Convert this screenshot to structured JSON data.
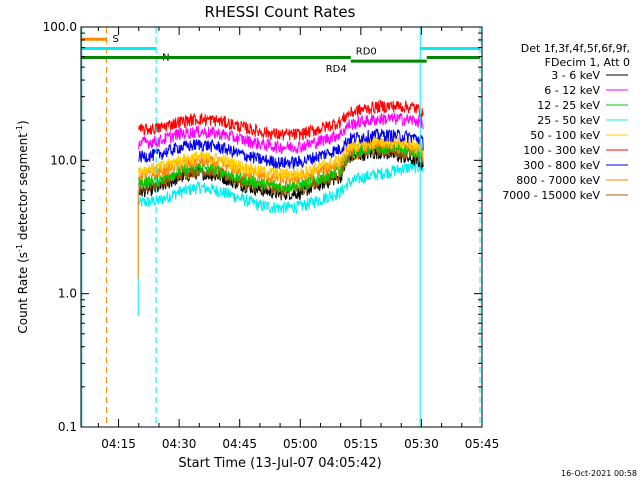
{
  "chart_data": {
    "type": "line",
    "title": "RHESSI Count Rates",
    "xlabel": "Start Time (13-Jul-07 04:05:42)",
    "ylabel": "Count Rate (s",
    "ylabel_sup1": "-1",
    "ylabel_mid": " detector segment",
    "ylabel_sup2": "-1",
    "ylabel_end": ")",
    "yscale": "log",
    "ylim": [
      0.1,
      100.0
    ],
    "xlim_min": [
      5.7,
      105.0
    ],
    "x_ticks": [
      {
        "min": 15,
        "label": "04:15"
      },
      {
        "min": 30,
        "label": "04:30"
      },
      {
        "min": 45,
        "label": "04:45"
      },
      {
        "min": 60,
        "label": "05:00"
      },
      {
        "min": 75,
        "label": "05:15"
      },
      {
        "min": 90,
        "label": "05:30"
      },
      {
        "min": 105,
        "label": "05:45"
      }
    ],
    "y_ticks": [
      {
        "v": 0.1,
        "label": "0.1"
      },
      {
        "v": 1.0,
        "label": "1.0"
      },
      {
        "v": 10.0,
        "label": "10.0"
      },
      {
        "v": 100.0,
        "label": "100.0"
      }
    ],
    "legend_header": [
      "Det 1f,3f,4f,5f,6f,9f,",
      "FDecim 1, Att 0"
    ],
    "legend_placement": "right",
    "grid": false,
    "x_unit": "minutes after 04:00",
    "data_start_min": 20,
    "data_end_min": 90.5,
    "series": [
      {
        "name": "3 - 6 keV",
        "color": "#000000",
        "x": [
          20,
          25,
          30,
          35,
          40,
          45,
          50,
          55,
          60,
          65,
          70,
          72,
          75,
          80,
          85,
          88,
          90,
          90.5
        ],
        "y": [
          5.8,
          6.2,
          7.4,
          8.1,
          7.6,
          6.6,
          6.0,
          5.6,
          5.7,
          6.6,
          7.5,
          10.5,
          11.0,
          11.5,
          10.6,
          10.1,
          9.6,
          8.8
        ]
      },
      {
        "name": "6 - 12 keV",
        "color": "#ff00ff",
        "x": [
          20,
          25,
          30,
          35,
          40,
          45,
          50,
          55,
          60,
          65,
          70,
          72,
          75,
          80,
          85,
          88,
          90,
          90.5
        ],
        "y": [
          13.5,
          14.0,
          15.8,
          16.5,
          15.9,
          14.5,
          13.3,
          12.6,
          12.7,
          14.0,
          15.8,
          18.5,
          19.5,
          20.5,
          20.5,
          20.0,
          19.5,
          18.0
        ]
      },
      {
        "name": "12 - 25 keV",
        "color": "#00cc00",
        "x": [
          20,
          25,
          30,
          35,
          40,
          45,
          50,
          55,
          60,
          65,
          70,
          72,
          75,
          80,
          85,
          88,
          90,
          90.5
        ],
        "y": [
          6.8,
          7.2,
          8.3,
          8.9,
          8.4,
          7.4,
          6.8,
          6.4,
          6.5,
          7.4,
          8.3,
          11.5,
          12.0,
          12.6,
          12.4,
          12.0,
          11.5,
          10.5
        ]
      },
      {
        "name": "25 - 50 keV",
        "color": "#00eeee",
        "x": [
          20,
          25,
          30,
          35,
          40,
          45,
          50,
          55,
          60,
          65,
          70,
          72,
          75,
          80,
          85,
          88,
          90,
          90.5
        ],
        "y": [
          4.8,
          5.0,
          5.8,
          6.3,
          5.9,
          5.2,
          4.6,
          4.4,
          4.5,
          5.1,
          5.8,
          6.8,
          7.4,
          8.0,
          8.6,
          9.0,
          8.9,
          8.2
        ]
      },
      {
        "name": "50 - 100 keV",
        "color": "#ffcc00",
        "x": [
          20,
          25,
          30,
          35,
          40,
          45,
          50,
          55,
          60,
          65,
          70,
          72,
          75,
          80,
          85,
          88,
          90,
          90.5
        ],
        "y": [
          8.4,
          8.8,
          10.0,
          10.7,
          10.2,
          9.1,
          8.3,
          7.9,
          8.0,
          9.0,
          10.1,
          12.6,
          13.2,
          13.9,
          13.6,
          13.0,
          12.5,
          11.6
        ]
      },
      {
        "name": "100 - 300 keV",
        "color": "#ff0000",
        "x": [
          20,
          25,
          30,
          35,
          40,
          45,
          50,
          55,
          60,
          65,
          70,
          72,
          75,
          80,
          85,
          88,
          90,
          90.5
        ],
        "y": [
          16.8,
          17.5,
          19.5,
          20.5,
          19.8,
          18.0,
          16.5,
          15.6,
          15.7,
          17.3,
          19.5,
          22.5,
          24.0,
          25.5,
          25.5,
          25.0,
          23.5,
          20.5
        ]
      },
      {
        "name": "300 - 800 keV",
        "color": "#0000ee",
        "x": [
          20,
          25,
          30,
          35,
          40,
          45,
          50,
          55,
          60,
          65,
          70,
          72,
          75,
          80,
          85,
          88,
          90,
          90.5
        ],
        "y": [
          10.6,
          11.1,
          12.5,
          13.2,
          12.6,
          11.2,
          10.2,
          9.6,
          9.7,
          10.9,
          12.2,
          14.5,
          15.0,
          15.6,
          15.3,
          14.9,
          14.3,
          13.0
        ]
      },
      {
        "name": "800 - 7000 keV",
        "color": "#ff8800",
        "x": [
          20,
          25,
          30,
          35,
          40,
          45,
          50,
          55,
          60,
          65,
          70,
          72,
          75,
          80,
          85,
          88,
          90,
          90.5
        ],
        "y": [
          7.8,
          8.2,
          9.3,
          10.0,
          9.5,
          8.4,
          7.7,
          7.3,
          7.4,
          8.4,
          9.4,
          12.2,
          12.8,
          13.4,
          13.2,
          12.7,
          12.1,
          11.0
        ]
      },
      {
        "name": "7000 - 15000 keV",
        "color": "#a05a00",
        "x": [
          20,
          25,
          30,
          35,
          40,
          45,
          50,
          55,
          60,
          65,
          70,
          72,
          75,
          80,
          85,
          88,
          90,
          90.5
        ],
        "y": [
          6.3,
          6.7,
          7.8,
          8.5,
          8.0,
          7.0,
          6.4,
          6.0,
          6.1,
          7.0,
          7.9,
          10.8,
          11.4,
          12.0,
          11.6,
          11.1,
          10.6,
          9.6
        ]
      }
    ],
    "annotations": {
      "flags": [
        {
          "label": "S",
          "color": "#ff8800",
          "y": 81,
          "segments": [
            [
              5.7,
              12
            ]
          ]
        },
        {
          "label": "N",
          "color": "#00eeee",
          "y": 69,
          "segments": [
            [
              5.7,
              24.3
            ],
            [
              89.7,
              104.5
            ]
          ]
        },
        {
          "label": "RD0",
          "color": "#008800",
          "y": 59,
          "segments": [
            [
              5.7,
              72.5
            ],
            [
              91.3,
              104.5
            ]
          ]
        },
        {
          "label": "RD4",
          "color": "#008800",
          "y": 55.5,
          "segments": [
            [
              72.5,
              91.3
            ]
          ]
        }
      ],
      "vlines": [
        {
          "min": 12.0,
          "color": "#ff8800",
          "dashed": true
        },
        {
          "min": 24.3,
          "color": "#00eeee",
          "dashed": true
        },
        {
          "min": 89.7,
          "color": "#00eeee",
          "dashed": false
        },
        {
          "min": 104.5,
          "color": "#00eeee",
          "dashed": true
        },
        {
          "min": 5.9,
          "color": "#00eeee",
          "dashed": false
        }
      ],
      "timestamp": "16-Oct-2021 00:58"
    }
  }
}
